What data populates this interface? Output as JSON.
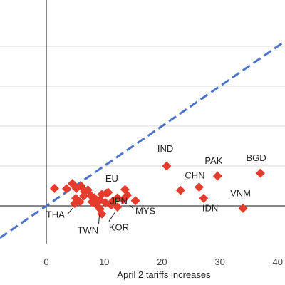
{
  "chart_data": {
    "type": "scatter",
    "title": "",
    "xlabel": "April 2 tariffs increases",
    "ylabel": "",
    "xlim": [
      -8,
      41
    ],
    "ylim": [
      -9,
      45
    ],
    "grid": "horizontal",
    "legend": "none",
    "x_ticks": [
      0,
      10,
      20,
      30,
      40
    ],
    "x_tick_labels": [
      "0",
      "10",
      "20",
      "30",
      "40"
    ],
    "y_gridlines": [
      10,
      20,
      30,
      40
    ],
    "reference_line": {
      "type": "45-degree",
      "slope": 1,
      "intercept": 0,
      "style": "dashed"
    },
    "marker": {
      "shape": "diamond",
      "color": "#e53b2c"
    },
    "line_color": "#4b73c9",
    "points": [
      {
        "x": 20.8,
        "y": 10.0,
        "label": "IND"
      },
      {
        "x": 29.6,
        "y": 7.5,
        "label": "PAK"
      },
      {
        "x": 37.0,
        "y": 8.2,
        "label": "BGD"
      },
      {
        "x": 26.4,
        "y": 4.7,
        "label": "CHN"
      },
      {
        "x": 23.2,
        "y": 3.9,
        "label": ""
      },
      {
        "x": 27.2,
        "y": 1.9,
        "label": "IDN"
      },
      {
        "x": 34.0,
        "y": -0.6,
        "label": "VNM"
      },
      {
        "x": 10.7,
        "y": 3.4,
        "label": "EU"
      },
      {
        "x": 11.5,
        "y": 1.2,
        "label": "JPN"
      },
      {
        "x": 15.4,
        "y": 1.3,
        "label": "MYS"
      },
      {
        "x": 4.9,
        "y": 0.6,
        "label": "THA"
      },
      {
        "x": 9.3,
        "y": -0.8,
        "label": "TWN"
      },
      {
        "x": 12.3,
        "y": -0.3,
        "label": "KOR"
      },
      {
        "x": 1.4,
        "y": 4.4,
        "label": ""
      },
      {
        "x": 3.5,
        "y": 4.3,
        "label": ""
      },
      {
        "x": 4.5,
        "y": 5.6,
        "label": ""
      },
      {
        "x": 5.2,
        "y": 4.4,
        "label": ""
      },
      {
        "x": 6.0,
        "y": 5.0,
        "label": ""
      },
      {
        "x": 6.6,
        "y": 3.6,
        "label": ""
      },
      {
        "x": 7.2,
        "y": 4.0,
        "label": ""
      },
      {
        "x": 5.1,
        "y": 1.9,
        "label": ""
      },
      {
        "x": 5.8,
        "y": 1.0,
        "label": ""
      },
      {
        "x": 6.5,
        "y": 2.5,
        "label": ""
      },
      {
        "x": 7.7,
        "y": 2.6,
        "label": ""
      },
      {
        "x": 7.9,
        "y": 1.0,
        "label": ""
      },
      {
        "x": 8.3,
        "y": 2.0,
        "label": ""
      },
      {
        "x": 9.3,
        "y": 1.5,
        "label": ""
      },
      {
        "x": 8.6,
        "y": 0.4,
        "label": ""
      },
      {
        "x": 9.6,
        "y": 2.9,
        "label": ""
      },
      {
        "x": 10.2,
        "y": 0.8,
        "label": ""
      },
      {
        "x": 10.4,
        "y": 3.2,
        "label": ""
      },
      {
        "x": 12.3,
        "y": 2.0,
        "label": ""
      },
      {
        "x": 13.6,
        "y": 4.1,
        "label": ""
      },
      {
        "x": 13.3,
        "y": 1.6,
        "label": ""
      },
      {
        "x": 14.0,
        "y": 2.7,
        "label": ""
      },
      {
        "x": 9.6,
        "y": -2.0,
        "label": ""
      },
      {
        "x": 11.2,
        "y": 0.2,
        "label": ""
      }
    ]
  }
}
